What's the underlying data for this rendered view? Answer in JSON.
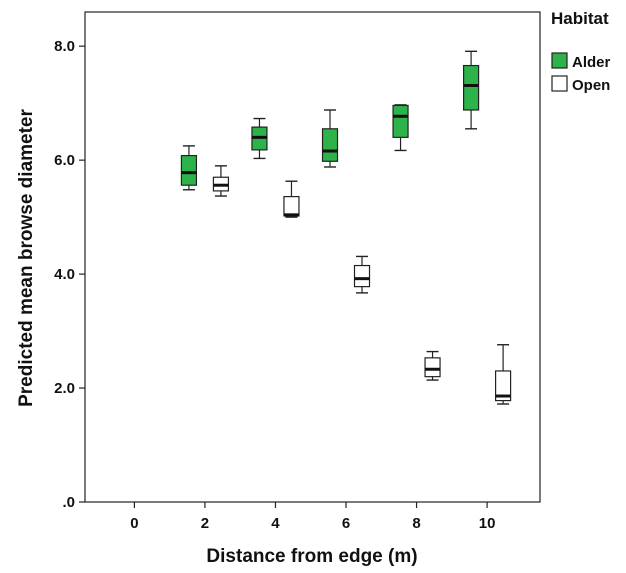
{
  "chart_data": {
    "type": "boxplot",
    "xlabel": "Distance from edge (m)",
    "ylabel": "Predicted mean browse diameter",
    "xlim": [
      -1.4,
      11.5
    ],
    "ylim": [
      0,
      8.6
    ],
    "x_ticks": [
      0,
      2,
      4,
      6,
      8,
      10
    ],
    "x_tick_labels": [
      "0",
      "2",
      "4",
      "6",
      "8",
      "10"
    ],
    "y_ticks": [
      0,
      2,
      4,
      6,
      8
    ],
    "y_tick_labels": [
      ".0",
      "2.0",
      "4.0",
      "6.0",
      "8.0"
    ],
    "grid": false,
    "legend": {
      "title": "Habitat",
      "placement": "outside-right-top"
    },
    "series": [
      {
        "name": "Alder",
        "color": "#2db34a",
        "boxes": [
          {
            "x": 2,
            "min": 5.48,
            "q1": 5.56,
            "median": 5.78,
            "q3": 6.08,
            "max": 6.25
          },
          {
            "x": 4,
            "min": 6.03,
            "q1": 6.18,
            "median": 6.4,
            "q3": 6.58,
            "max": 6.73
          },
          {
            "x": 6,
            "min": 5.88,
            "q1": 5.98,
            "median": 6.16,
            "q3": 6.55,
            "max": 6.88
          },
          {
            "x": 8,
            "min": 6.17,
            "q1": 6.4,
            "median": 6.77,
            "q3": 6.96,
            "max": 6.97
          },
          {
            "x": 10,
            "min": 6.55,
            "q1": 6.88,
            "median": 7.31,
            "q3": 7.66,
            "max": 7.91
          }
        ]
      },
      {
        "name": "Open",
        "color": "#ffffff",
        "boxes": [
          {
            "x": 2,
            "min": 5.37,
            "q1": 5.46,
            "median": 5.56,
            "q3": 5.7,
            "max": 5.9
          },
          {
            "x": 4,
            "min": 5.0,
            "q1": 5.02,
            "median": 5.04,
            "q3": 5.36,
            "max": 5.63
          },
          {
            "x": 6,
            "min": 3.67,
            "q1": 3.78,
            "median": 3.92,
            "q3": 4.15,
            "max": 4.31
          },
          {
            "x": 8,
            "min": 2.14,
            "q1": 2.2,
            "median": 2.33,
            "q3": 2.53,
            "max": 2.64
          },
          {
            "x": 10,
            "min": 1.72,
            "q1": 1.78,
            "median": 1.86,
            "q3": 2.3,
            "max": 2.76
          }
        ]
      }
    ]
  }
}
